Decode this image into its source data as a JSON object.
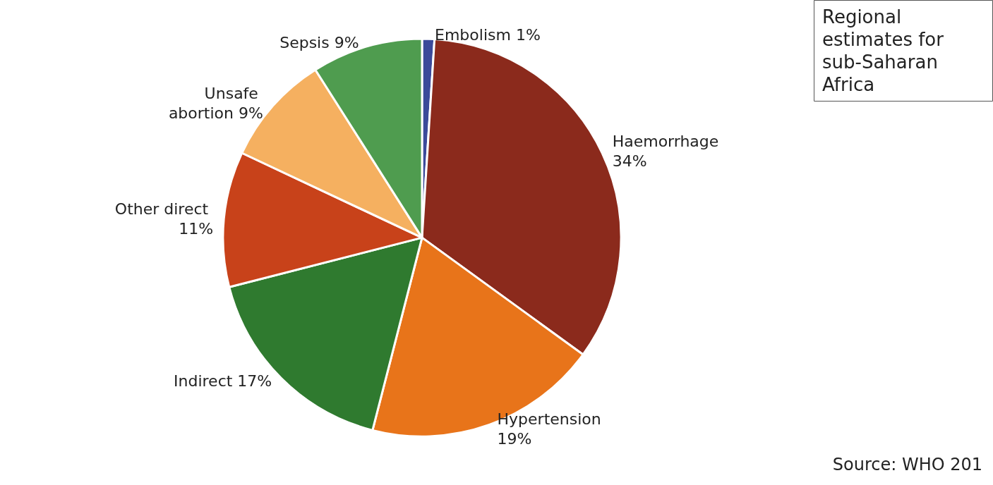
{
  "chart_data": {
    "type": "pie",
    "title": "Regional estimates for sub-Saharan Africa",
    "categories": [
      "Embolism",
      "Haemorrhage",
      "Hypertension",
      "Indirect",
      "Other direct",
      "Unsafe abortion",
      "Sepsis"
    ],
    "values": [
      1,
      34,
      19,
      17,
      11,
      9,
      9
    ],
    "colors": [
      "#3b4a9a",
      "#8b2a1c",
      "#e8741a",
      "#2f7a2f",
      "#c8421a",
      "#f5b060",
      "#4f9c4f"
    ],
    "annotations": [
      "Source: WHO 201"
    ],
    "value_labels": [
      "1%",
      "34%",
      "19%",
      "17%",
      "11%",
      "9%",
      "9%"
    ],
    "legend": false
  }
}
